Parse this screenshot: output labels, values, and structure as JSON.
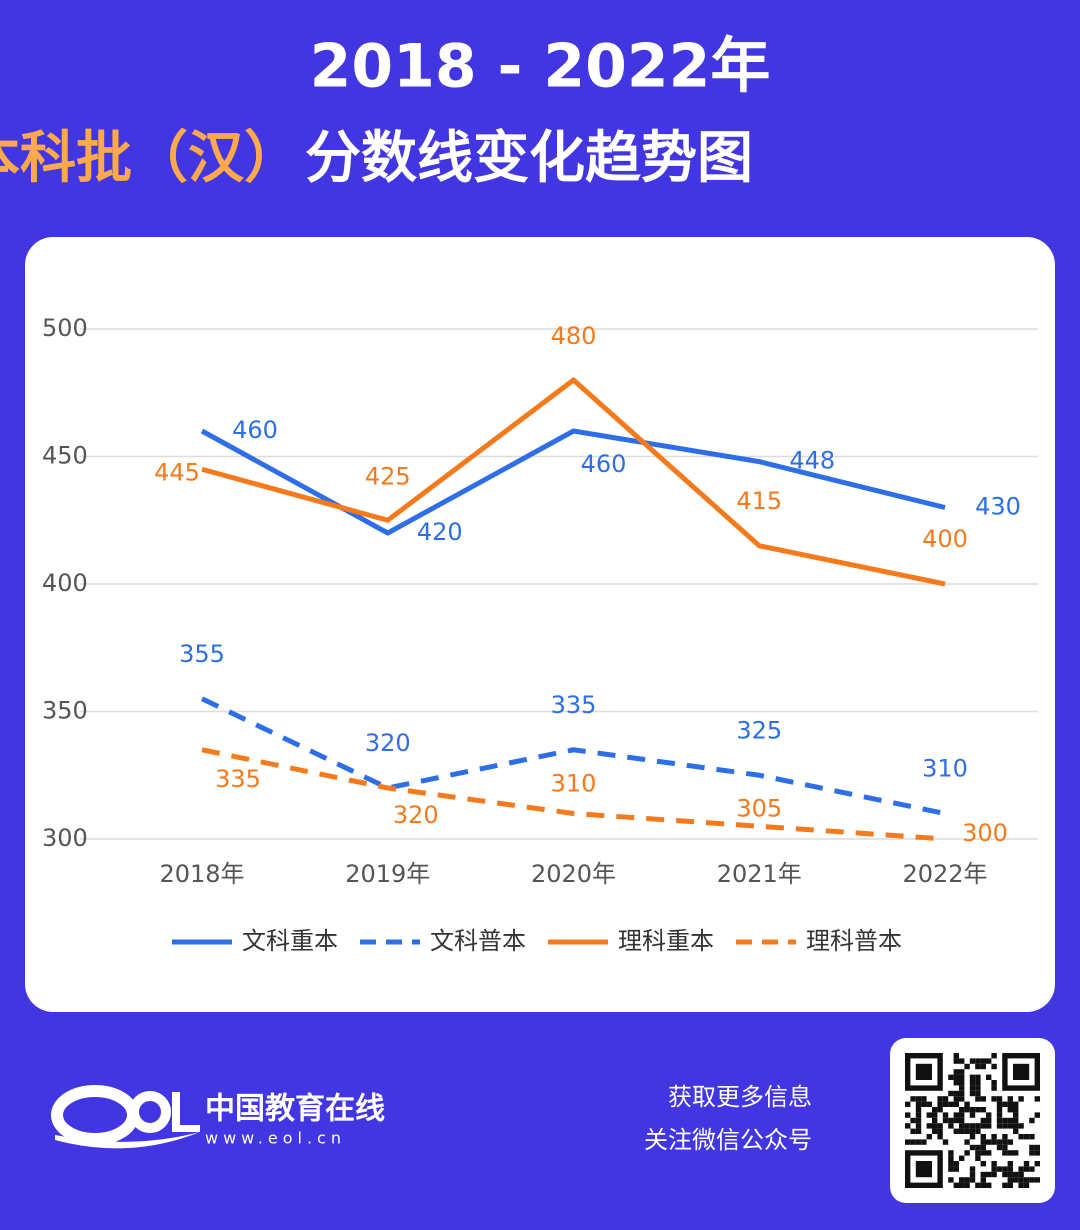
{
  "chart_data": {
    "type": "line",
    "title": "2018 - 2022年",
    "subtitle": [
      "西藏本科批（汉）",
      "分数线变化趋势图"
    ],
    "categories": [
      "2018年",
      "2019年",
      "2020年",
      "2021年",
      "2022年"
    ],
    "series": [
      {
        "name": "文科重本",
        "color": "#2e6ee6",
        "dashed": false,
        "values": [
          460,
          420,
          460,
          448,
          430
        ]
      },
      {
        "name": "文科普本",
        "color": "#2e6ee6",
        "dashed": true,
        "values": [
          355,
          320,
          335,
          325,
          310
        ]
      },
      {
        "name": "理科重本",
        "color": "#f57a1c",
        "dashed": false,
        "values": [
          445,
          425,
          480,
          415,
          400
        ]
      },
      {
        "name": "理科普本",
        "color": "#f57a1c",
        "dashed": true,
        "values": [
          335,
          320,
          310,
          305,
          300
        ]
      }
    ],
    "ylim": [
      300,
      500
    ],
    "yticks": [
      300,
      350,
      400,
      450,
      500
    ],
    "grid": true,
    "legend": "bottom"
  },
  "footer": {
    "brand": "中国教育在线",
    "url": "www.eol.cn",
    "lines": [
      "获取更多信息",
      "关注微信公众号"
    ]
  }
}
